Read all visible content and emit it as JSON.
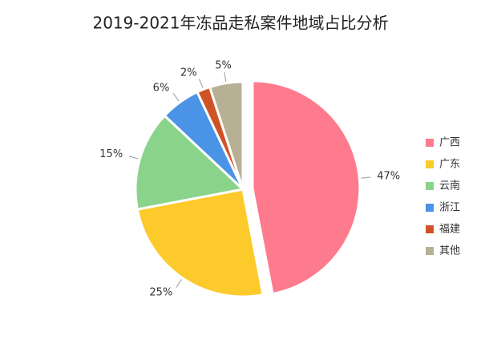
{
  "chart_data": {
    "type": "pie",
    "title": "2019-2021年冻品走私案件地域占比分析",
    "categories": [
      "广西",
      "广东",
      "云南",
      "浙江",
      "福建",
      "其他"
    ],
    "values": [
      47,
      25,
      15,
      6,
      2,
      5
    ],
    "value_labels": [
      "47%",
      "25%",
      "15%",
      "6%",
      "2%",
      "5%"
    ],
    "colors": [
      "#fd7b8d",
      "#fdca2c",
      "#8ad38a",
      "#4a93e6",
      "#cf5327",
      "#b8b094"
    ],
    "legend": "right"
  }
}
